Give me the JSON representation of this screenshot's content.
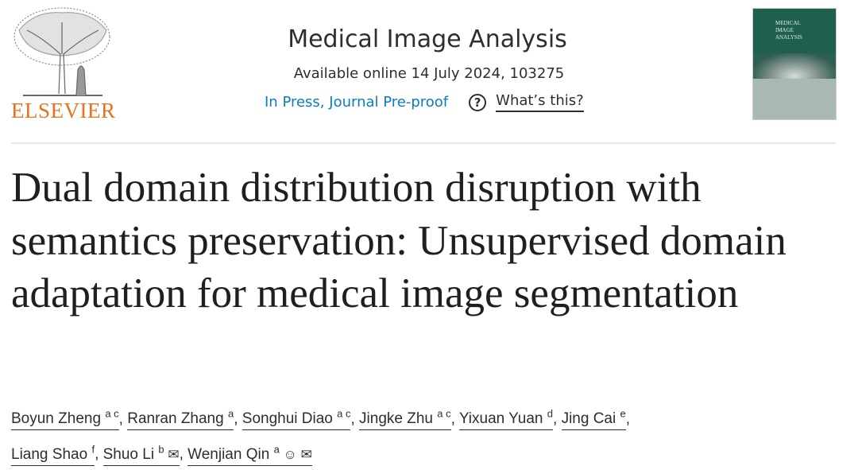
{
  "publisher": {
    "name": "ELSEVIER",
    "color": "#e9711c"
  },
  "journal": {
    "title": "Medical Image Analysis",
    "availability": "Available online 14 July 2024, 103275",
    "status_link": "In Press, Journal Pre-proof",
    "whats_this": "What’s this?",
    "cover_title_lines": [
      "MEDICAL",
      "IMAGE",
      "ANALYSIS"
    ]
  },
  "article": {
    "title": "Dual domain distribution disruption with semantics preservation: Unsupervised domain adaptation for medical image segmentation",
    "authors": [
      {
        "name": "Boyun Zheng",
        "aff": "a c",
        "icons": []
      },
      {
        "name": "Ranran Zhang",
        "aff": "a",
        "icons": []
      },
      {
        "name": "Songhui Diao",
        "aff": "a c",
        "icons": []
      },
      {
        "name": "Jingke Zhu",
        "aff": "a c",
        "icons": []
      },
      {
        "name": "Yixuan Yuan",
        "aff": "d",
        "icons": []
      },
      {
        "name": "Jing Cai",
        "aff": "e",
        "icons": []
      },
      {
        "name": "Liang Shao",
        "aff": "f",
        "icons": []
      },
      {
        "name": "Shuo Li",
        "aff": "b",
        "icons": [
          "email-icon"
        ]
      },
      {
        "name": "Wenjian Qin",
        "aff": "a",
        "icons": [
          "person-icon",
          "email-icon"
        ]
      }
    ]
  },
  "colors": {
    "link": "#0c7dbb",
    "cover": "#1e5f4d"
  }
}
